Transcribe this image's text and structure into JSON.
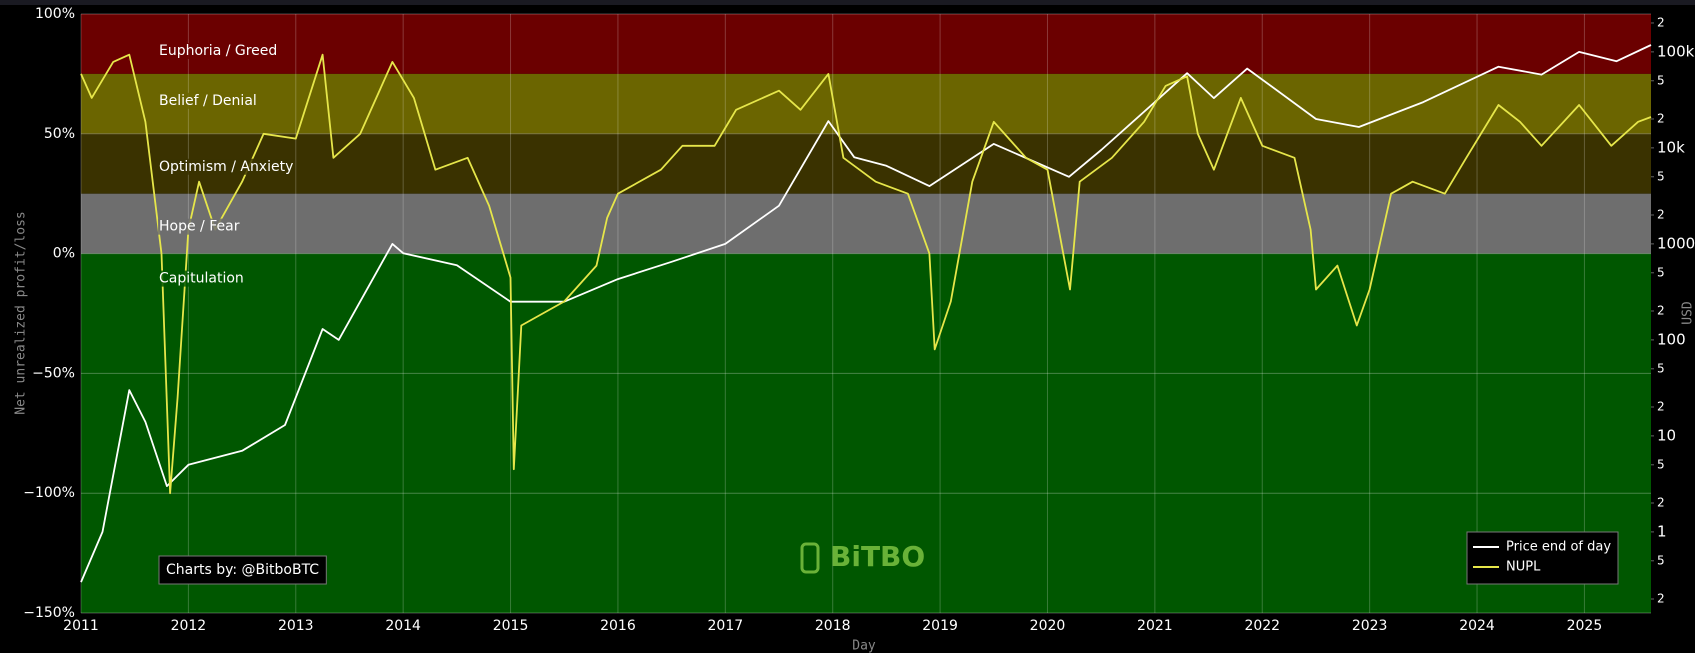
{
  "chart_data": {
    "type": "line",
    "xlabel": "Day",
    "ylabel": "Net unrealized profit/loss",
    "y2label": "USD",
    "xlim": [
      2011,
      2025.62
    ],
    "xticks": [
      2011,
      2012,
      2013,
      2014,
      2015,
      2016,
      2017,
      2018,
      2019,
      2020,
      2021,
      2022,
      2023,
      2024,
      2025
    ],
    "ylim": [
      -150,
      100
    ],
    "yticks": [
      {
        "value": -150,
        "label": "−150%"
      },
      {
        "value": -100,
        "label": "−100%"
      },
      {
        "value": -50,
        "label": "−50%"
      },
      {
        "value": 0,
        "label": "0%"
      },
      {
        "value": 50,
        "label": "50%"
      },
      {
        "value": 100,
        "label": "100%"
      }
    ],
    "y2lim": [
      0.143,
      248000
    ],
    "y2scale": "log",
    "y2ticks": [
      {
        "value": 0.2,
        "label": "2"
      },
      {
        "value": 0.5,
        "label": "5"
      },
      1,
      {
        "value": 2,
        "label": "2"
      },
      {
        "value": 5,
        "label": "5"
      },
      10,
      {
        "value": 20,
        "label": "2"
      },
      {
        "value": 50,
        "label": "5"
      },
      100,
      {
        "value": 200,
        "label": "2"
      },
      {
        "value": 500,
        "label": "5"
      },
      1000,
      {
        "value": 2000,
        "label": "2"
      },
      {
        "value": 5000,
        "label": "5"
      },
      {
        "value": 10000,
        "label": "10k"
      },
      {
        "value": 20000,
        "label": "2"
      },
      {
        "value": 50000,
        "label": "5"
      },
      {
        "value": 100000,
        "label": "100k"
      },
      {
        "value": 200000,
        "label": "2"
      }
    ],
    "grid": true,
    "legend": "bottom-right",
    "zones": [
      {
        "label": "Euphoria / Greed",
        "from": 75,
        "to": 100,
        "color": "#6b0000"
      },
      {
        "label": "Belief / Denial",
        "from": 50,
        "to": 75,
        "color": "#6b6500"
      },
      {
        "label": "Optimism / Anxiety",
        "from": 25,
        "to": 50,
        "color": "#3a3200"
      },
      {
        "label": "Hope / Fear",
        "from": 0,
        "to": 25,
        "color": "#6e6e6e"
      },
      {
        "label": "Capitulation",
        "from": -150,
        "to": 0,
        "color": "#005700"
      }
    ],
    "credit": "Charts by: @BitboBTC",
    "watermark": "BiTBO",
    "series": [
      {
        "name": "Price end of day",
        "color": "#ffffff",
        "axis": "y2",
        "x": [
          2011.0,
          2011.2,
          2011.45,
          2011.6,
          2011.8,
          2012.0,
          2012.5,
          2012.9,
          2013.25,
          2013.4,
          2013.9,
          2014.0,
          2014.5,
          2015.0,
          2015.5,
          2016.0,
          2016.5,
          2017.0,
          2017.5,
          2017.96,
          2018.2,
          2018.5,
          2018.9,
          2019.5,
          2020.2,
          2020.5,
          2021.0,
          2021.3,
          2021.55,
          2021.86,
          2022.5,
          2022.9,
          2023.5,
          2024.2,
          2024.6,
          2024.95,
          2025.3,
          2025.62
        ],
        "values": [
          0.3,
          1,
          30,
          14,
          3,
          5,
          7,
          13,
          130,
          100,
          1000,
          800,
          600,
          250,
          250,
          430,
          650,
          1000,
          2500,
          19000,
          8000,
          6500,
          4000,
          11000,
          5000,
          9500,
          30000,
          60000,
          33000,
          67000,
          20000,
          16500,
          30000,
          70000,
          58000,
          100000,
          80000,
          118000
        ]
      },
      {
        "name": "NUPL",
        "color": "#e6e64a",
        "x": [
          2011.0,
          2011.1,
          2011.3,
          2011.45,
          2011.6,
          2011.75,
          2011.83,
          2011.9,
          2012.0,
          2012.1,
          2012.25,
          2012.5,
          2012.7,
          2013.0,
          2013.25,
          2013.35,
          2013.6,
          2013.9,
          2014.1,
          2014.3,
          2014.6,
          2014.8,
          2015.0,
          2015.03,
          2015.1,
          2015.5,
          2015.8,
          2015.9,
          2016.0,
          2016.4,
          2016.6,
          2016.9,
          2017.1,
          2017.5,
          2017.7,
          2017.96,
          2018.1,
          2018.4,
          2018.7,
          2018.9,
          2018.95,
          2019.1,
          2019.3,
          2019.5,
          2019.8,
          2020.0,
          2020.21,
          2020.3,
          2020.6,
          2020.9,
          2021.1,
          2021.3,
          2021.4,
          2021.55,
          2021.8,
          2022.0,
          2022.3,
          2022.45,
          2022.5,
          2022.7,
          2022.88,
          2023.0,
          2023.2,
          2023.4,
          2023.7,
          2023.9,
          2024.2,
          2024.4,
          2024.6,
          2024.95,
          2025.25,
          2025.5,
          2025.62
        ],
        "values": [
          75,
          65,
          80,
          83,
          55,
          0,
          -100,
          -60,
          10,
          30,
          10,
          30,
          50,
          48,
          83,
          40,
          50,
          80,
          65,
          35,
          40,
          20,
          -10,
          -90,
          -30,
          -20,
          -5,
          15,
          25,
          35,
          45,
          45,
          60,
          68,
          60,
          75,
          40,
          30,
          25,
          0,
          -40,
          -20,
          30,
          55,
          40,
          35,
          -15,
          30,
          40,
          55,
          70,
          74,
          50,
          35,
          65,
          45,
          40,
          10,
          -15,
          -5,
          -30,
          -15,
          25,
          30,
          25,
          40,
          62,
          55,
          45,
          62,
          45,
          55,
          57
        ]
      }
    ]
  }
}
